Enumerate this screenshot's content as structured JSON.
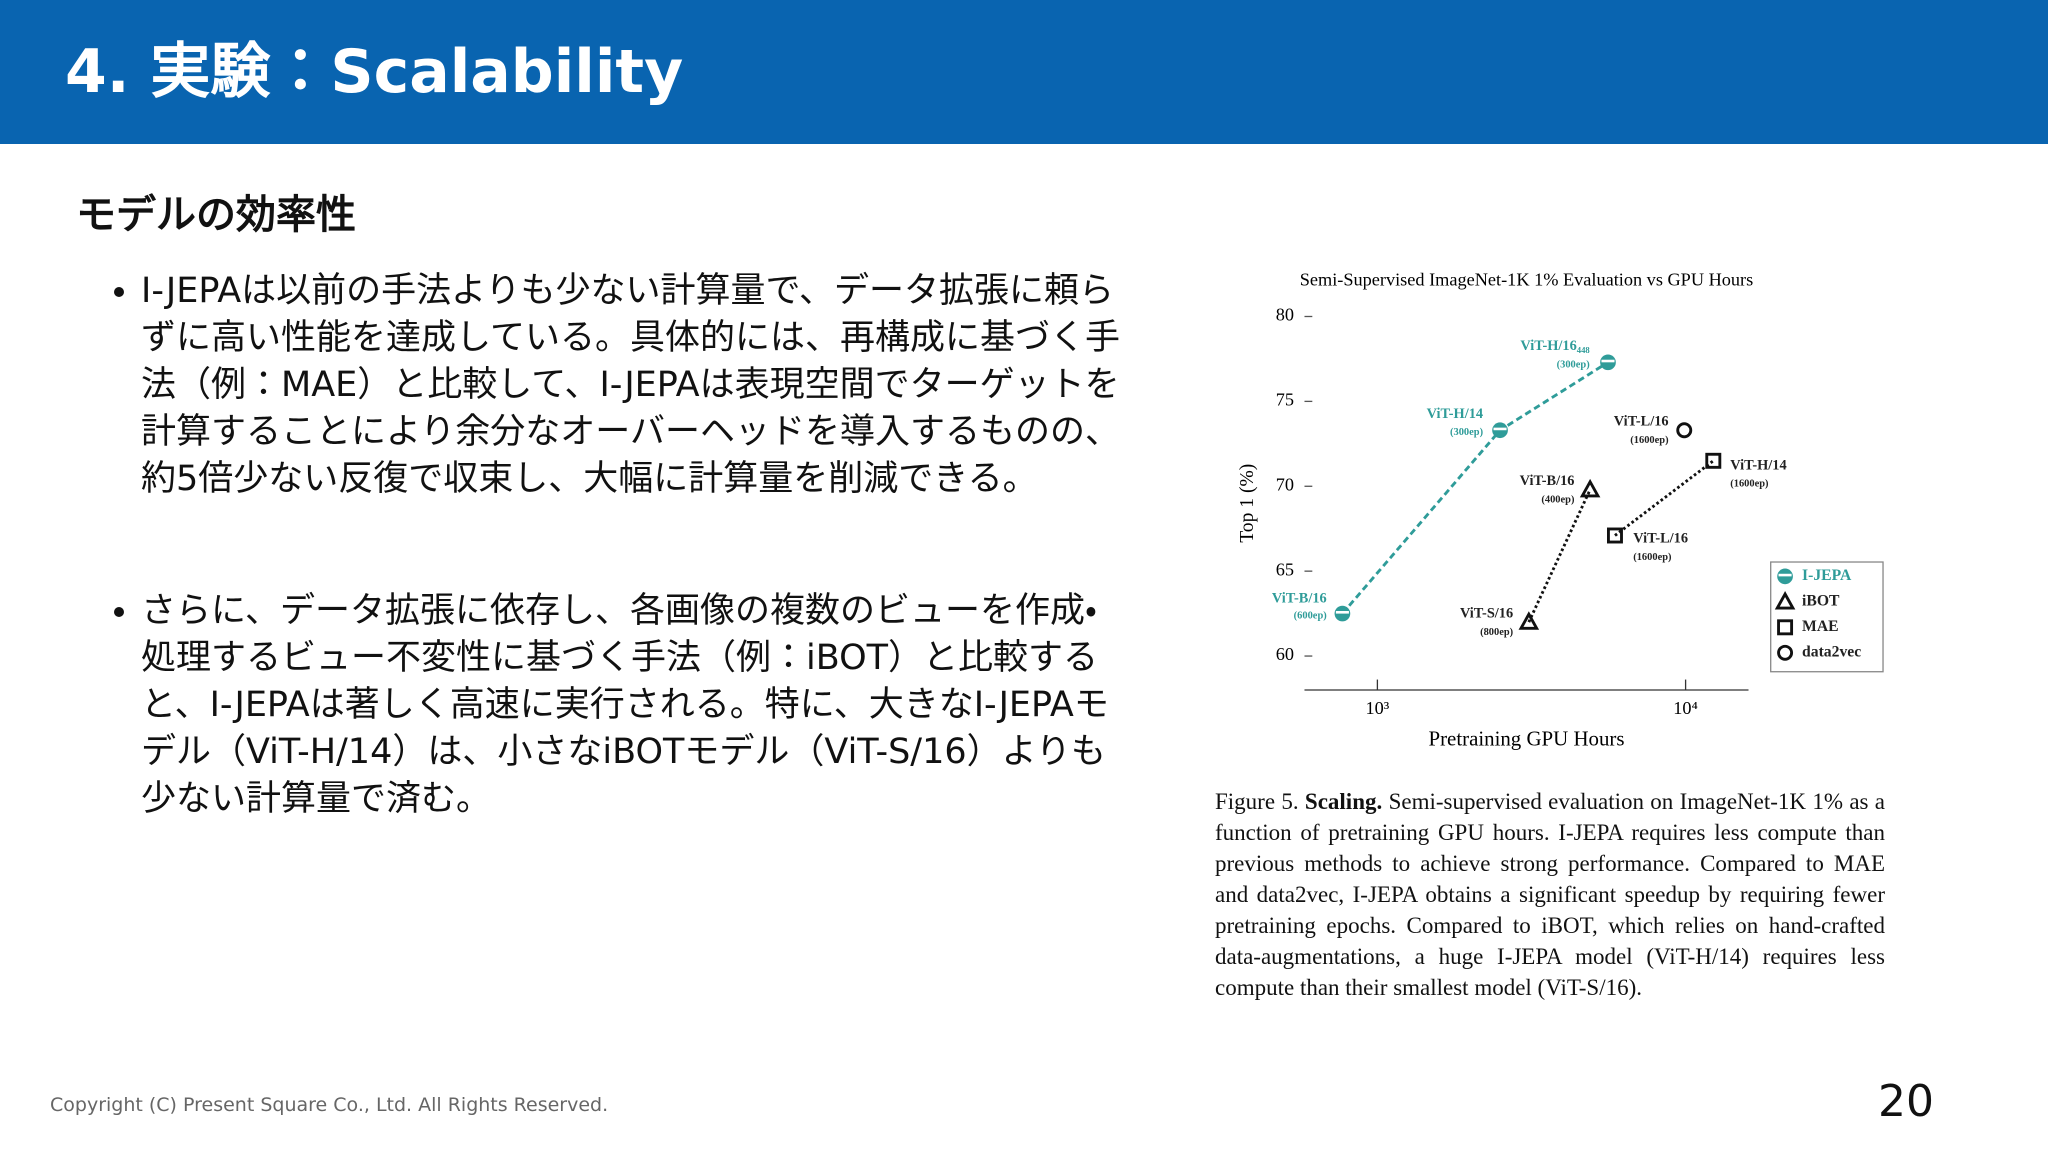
{
  "header": {
    "title": "4. 実験：Scalability"
  },
  "section": {
    "heading": "モデルの効率性"
  },
  "bullets": [
    "I-JEPAは以前の手法よりも少ない計算量で、データ拡張に頼らずに高い性能を達成している。具体的には、再構成に基づく手法（例：MAE）と比較して、I-JEPAは表現空間でターゲットを計算することにより余分なオーバーヘッドを導入するものの、約5倍少ない反復で収束し、大幅に計算量を削減できる。",
    "さらに、データ拡張に依存し、各画像の複数のビューを作成・処理するビュー不変性に基づく手法（例：iBOT）と比較すると、I-JEPAは著しく高速に実行される。特に、大きなI-JEPAモデル（ViT-H/14）は、小さなiBOTモデル（ViT-S/16）よりも少ない計算量で済む。"
  ],
  "chart_data": {
    "type": "scatter",
    "title": "Semi-Supervised ImageNet-1K 1% Evaluation vs GPU Hours",
    "x_label": "Pretraining GPU Hours",
    "y_label": "Top 1 (%)",
    "x_log": true,
    "xlim": [
      580,
      16000
    ],
    "xticks": [
      {
        "value": 1000,
        "label": "10³"
      },
      {
        "value": 10000,
        "label": "10⁴"
      }
    ],
    "ylim": [
      58,
      80.5
    ],
    "yticks": [
      60,
      65,
      70,
      75,
      80
    ],
    "legend": "lower-right",
    "series": [
      {
        "name": "I-JEPA",
        "color": "#2f9c99",
        "marker": "half-circle",
        "line_style": "dashed",
        "x": [
          770,
          2500,
          5600
        ],
        "values": [
          62.5,
          73.3,
          77.3
        ],
        "point_labels": [
          "ViT-B/16",
          "ViT-H/14",
          "ViT-H/16₄₄₈"
        ],
        "point_sublabels": [
          "(600ep)",
          "(300ep)",
          "(300ep)"
        ]
      },
      {
        "name": "iBOT",
        "color": "#111111",
        "marker": "triangle",
        "line_style": "dotted",
        "x": [
          3100,
          4900
        ],
        "values": [
          62.0,
          69.8
        ],
        "point_labels": [
          "ViT-S/16",
          "ViT-B/16"
        ],
        "point_sublabels": [
          "(800ep)",
          "(400ep)"
        ]
      },
      {
        "name": "MAE",
        "color": "#111111",
        "marker": "square",
        "line_style": "dotted",
        "x": [
          5900,
          12300
        ],
        "values": [
          67.1,
          71.5
        ],
        "point_labels": [
          "ViT-L/16",
          "ViT-H/14"
        ],
        "point_sublabels": [
          "(1600ep)",
          "(1600ep)"
        ]
      },
      {
        "name": "data2vec",
        "color": "#111111",
        "marker": "circle",
        "line_style": "none",
        "x": [
          9900
        ],
        "values": [
          73.3
        ],
        "point_labels": [
          "ViT-L/16"
        ],
        "point_sublabels": [
          "(1600ep)"
        ]
      }
    ]
  },
  "caption": {
    "label": "Figure 5.",
    "bold": "Scaling.",
    "text": "Semi-supervised evaluation on ImageNet-1K 1% as a function of pretraining GPU hours. I-JEPA requires less compute than previous methods to achieve strong performance. Compared to MAE and data2vec, I-JEPA obtains a significant speedup by requiring fewer pretraining epochs. Compared to iBOT, which relies on hand-crafted data-augmentations, a huge I-JEPA model (ViT-H/14) requires less compute than their smallest model (ViT-S/16)."
  },
  "footer": {
    "copyright": "Copyright (C) Present Square Co., Ltd. All Rights Reserved.",
    "page": "20"
  }
}
